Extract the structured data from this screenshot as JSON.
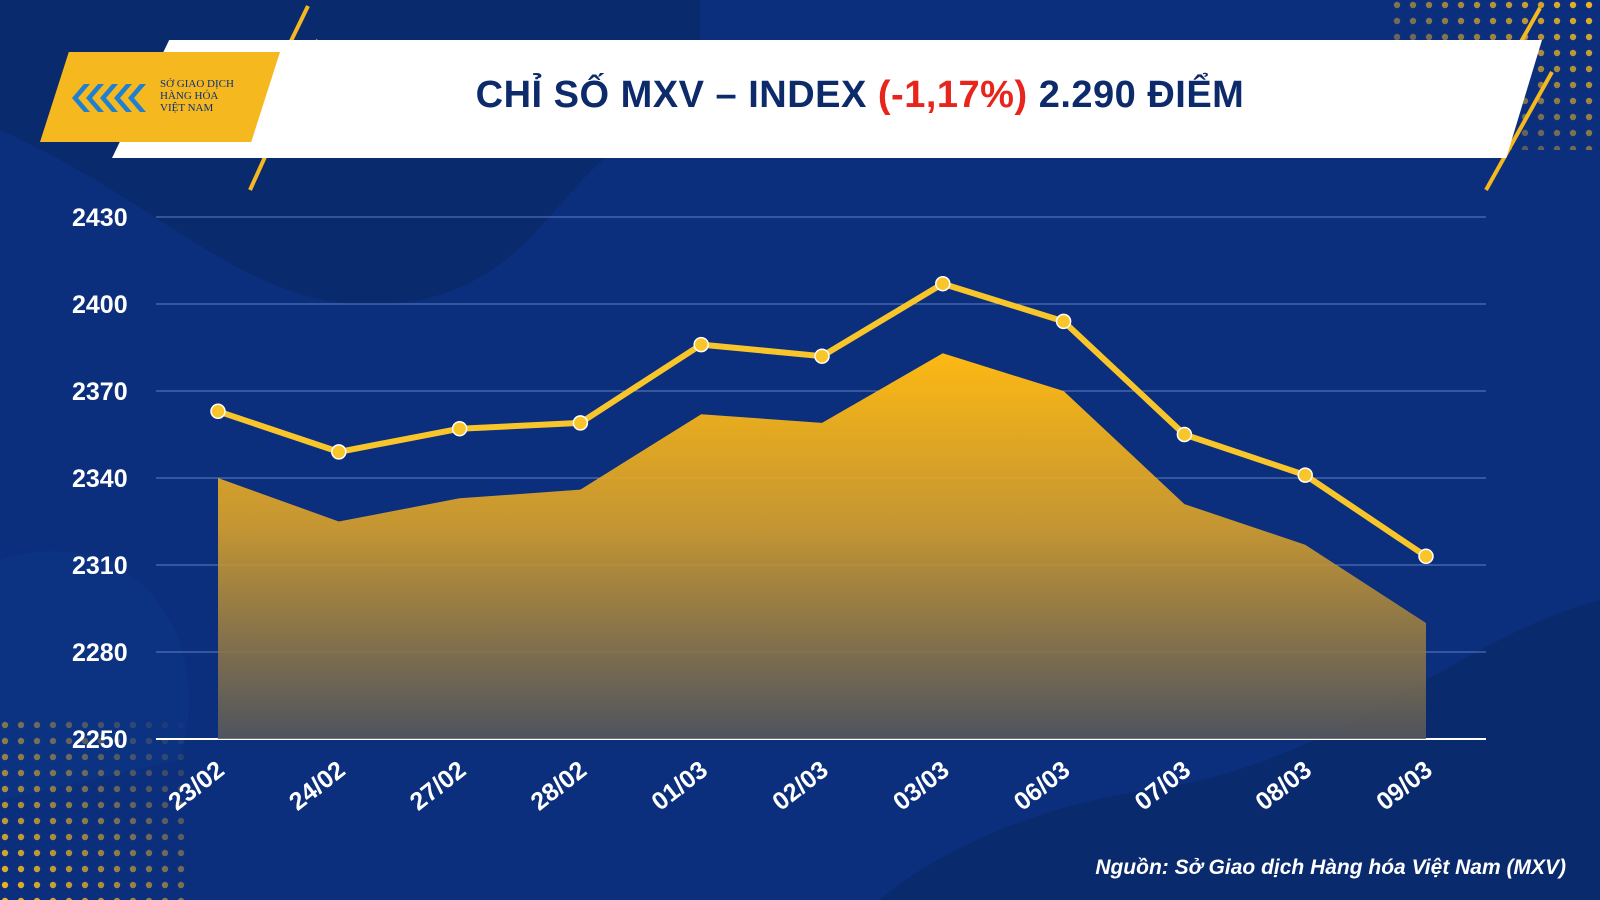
{
  "logo": {
    "lines": [
      "SỞ GIAO DỊCH",
      "HÀNG HÓA",
      "VIỆT NAM"
    ]
  },
  "header": {
    "title_prefix": "CHỈ SỐ MXV – INDEX",
    "change_text": "(-1,17%)",
    "value_text": "2.290 ĐIỂM"
  },
  "source": "Nguồn: Sở Giao dịch Hàng hóa Việt Nam (MXV)",
  "colors": {
    "background": "#0b2f7c",
    "accent": "#f6b81f",
    "line": "#f8c52b",
    "change": "#e8251d",
    "title": "#0d2a6b"
  },
  "chart_data": {
    "type": "line",
    "categories": [
      "23/02",
      "24/02",
      "27/02",
      "28/02",
      "01/03",
      "02/03",
      "03/03",
      "06/03",
      "07/03",
      "08/03",
      "09/03"
    ],
    "series": [
      {
        "values": [
          2363,
          2349,
          2357,
          2359,
          2386,
          2382,
          2407,
          2394,
          2355,
          2341,
          2313
        ]
      },
      {
        "values": [
          2340,
          2325,
          2333,
          2336,
          2362,
          2359,
          2383,
          2370,
          2331,
          2317,
          2290
        ]
      }
    ],
    "y_ticks": [
      2430,
      2400,
      2370,
      2340,
      2310,
      2280,
      2250
    ],
    "ylim": [
      2250,
      2430
    ],
    "grid": true,
    "legend": "none"
  }
}
